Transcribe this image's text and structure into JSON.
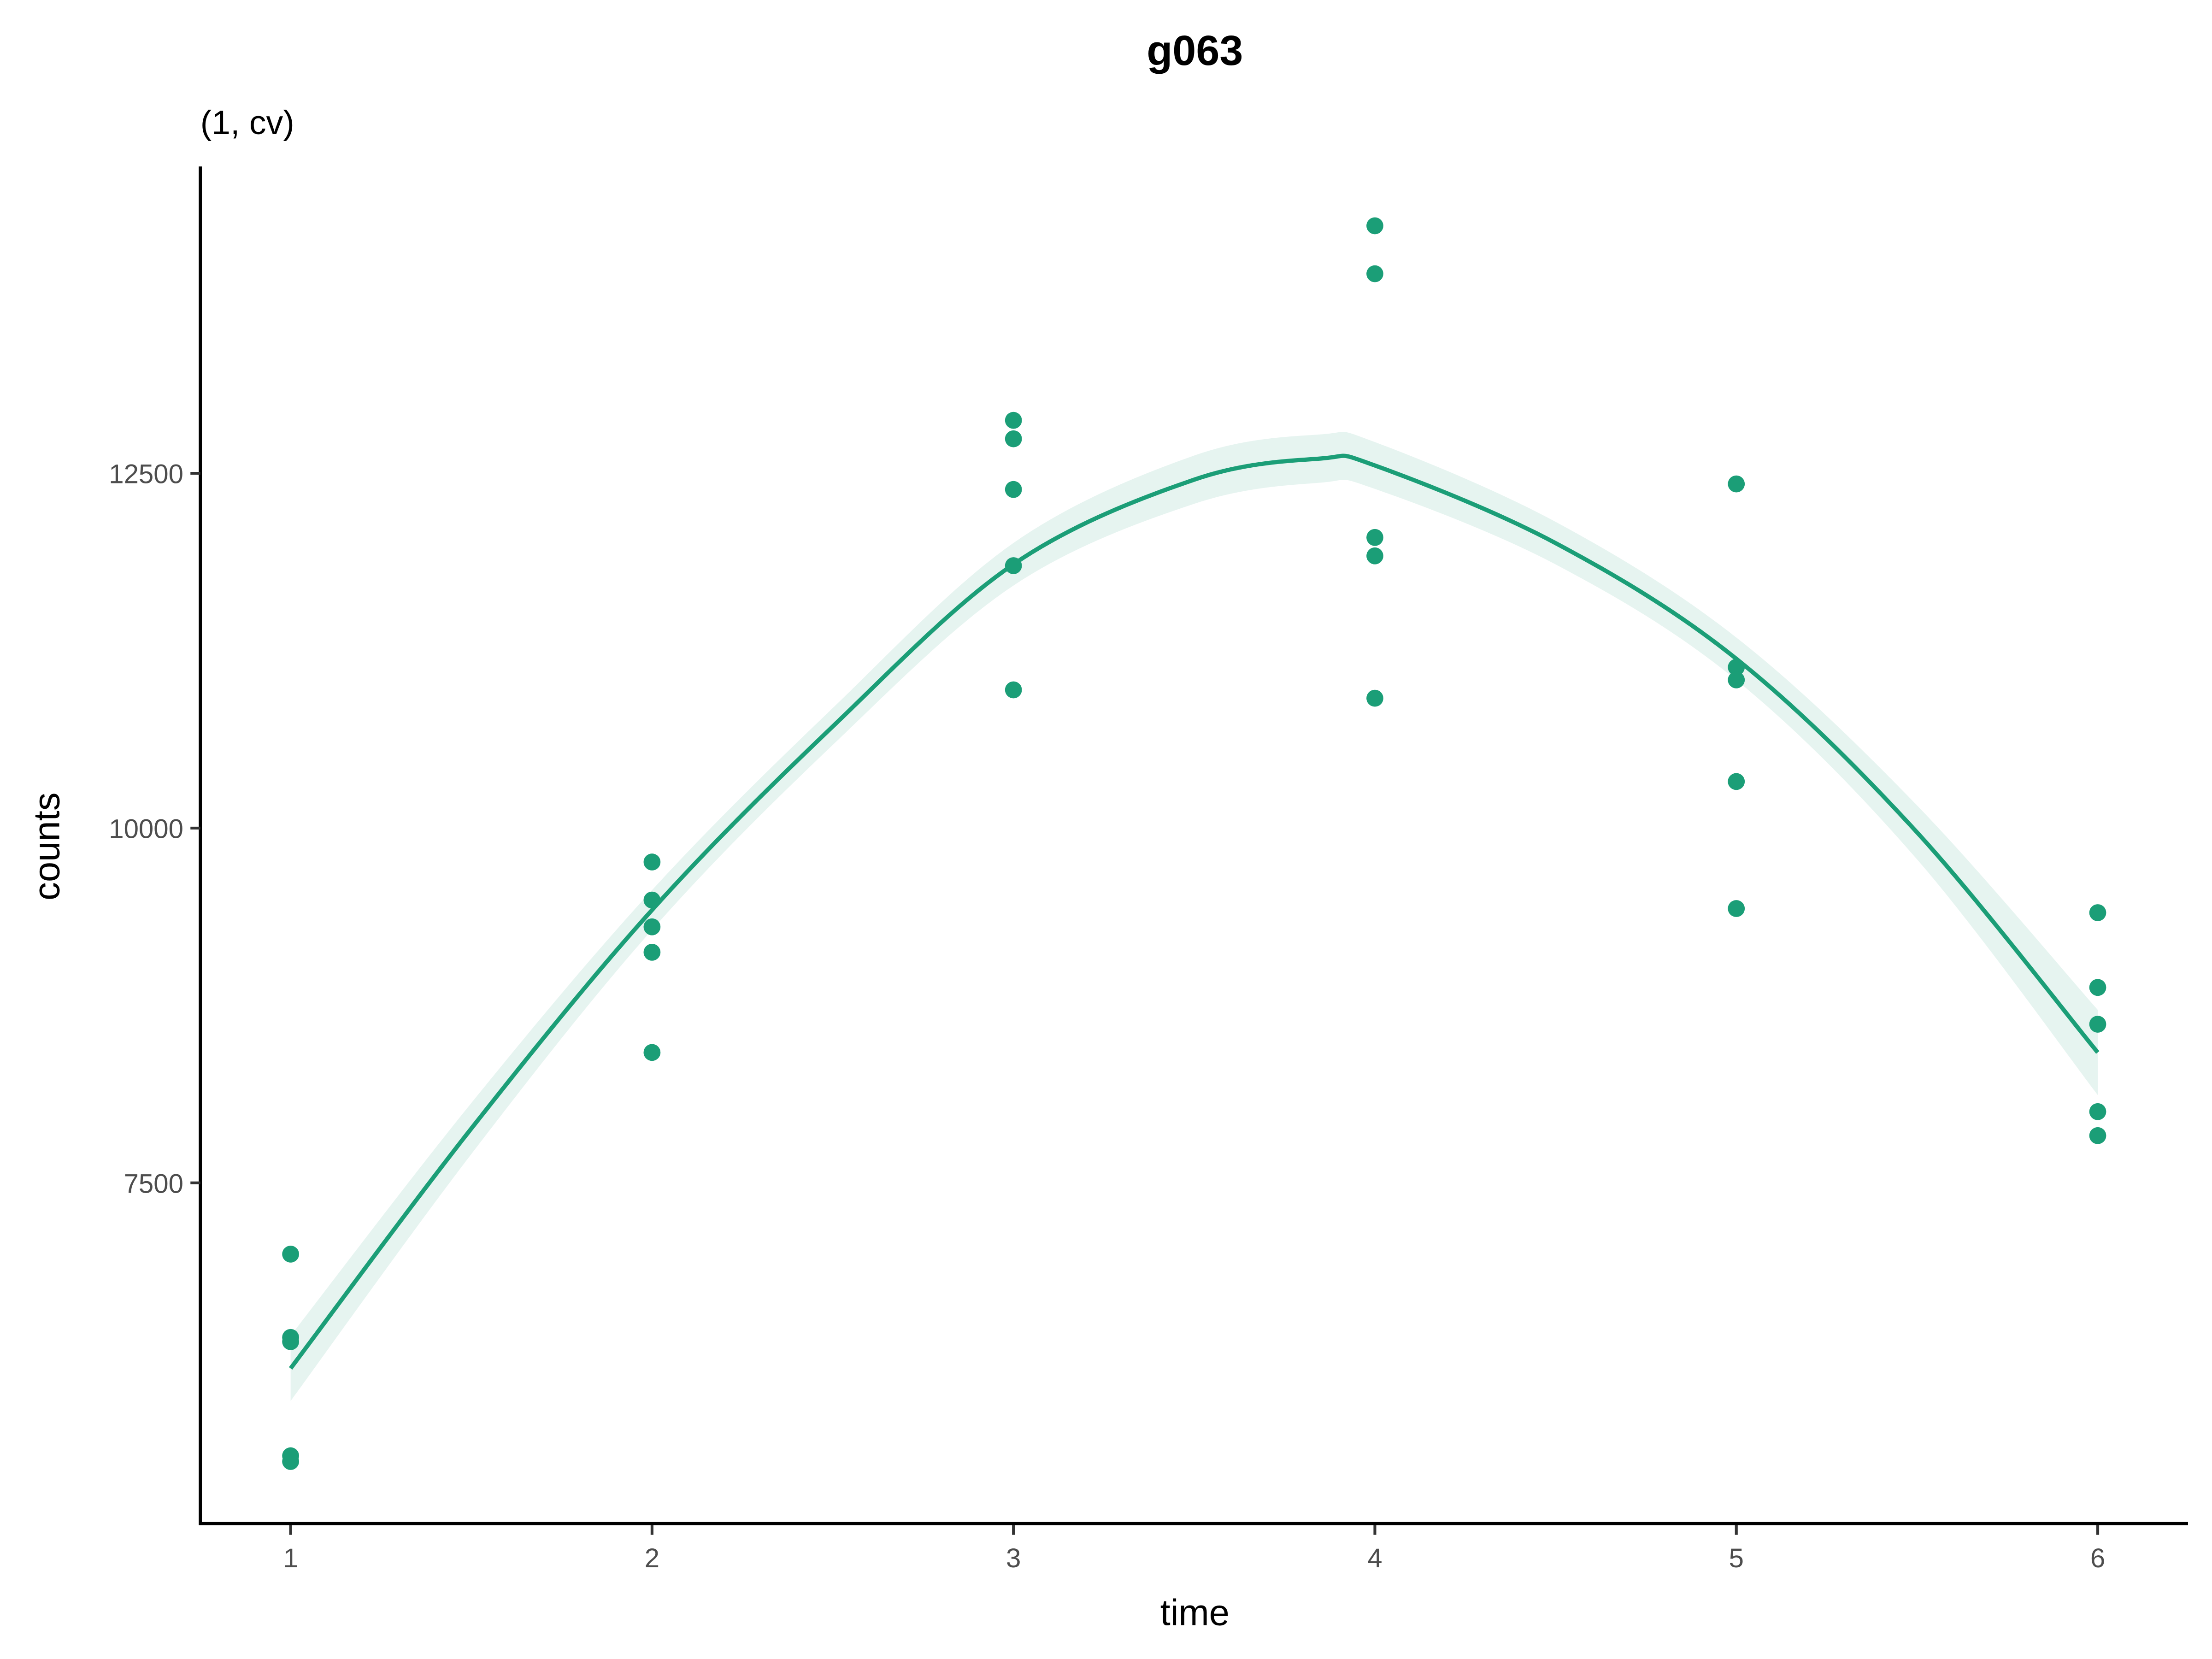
{
  "chart_data": {
    "type": "scatter",
    "title": "g063",
    "subtitle": "(1, cv)",
    "xlabel": "time",
    "ylabel": "counts",
    "xlim": [
      0.75,
      6.25
    ],
    "ylim": [
      5100,
      14660
    ],
    "xticks": [
      1,
      2,
      3,
      4,
      5,
      6
    ],
    "yticks": [
      7500,
      10000,
      12500
    ],
    "grid": false,
    "color": "#1B9E77",
    "points": [
      {
        "x": 1,
        "y": 6998
      },
      {
        "x": 1,
        "y": 6411
      },
      {
        "x": 1,
        "y": 6381
      },
      {
        "x": 1,
        "y": 5577
      },
      {
        "x": 1,
        "y": 5537
      },
      {
        "x": 2,
        "y": 9761
      },
      {
        "x": 2,
        "y": 9493
      },
      {
        "x": 2,
        "y": 9304
      },
      {
        "x": 2,
        "y": 9125
      },
      {
        "x": 2,
        "y": 8419
      },
      {
        "x": 3,
        "y": 12873
      },
      {
        "x": 3,
        "y": 12743
      },
      {
        "x": 3,
        "y": 12386
      },
      {
        "x": 3,
        "y": 11849
      },
      {
        "x": 3,
        "y": 10974
      },
      {
        "x": 4,
        "y": 14244
      },
      {
        "x": 4,
        "y": 13906
      },
      {
        "x": 4,
        "y": 12048
      },
      {
        "x": 4,
        "y": 11918
      },
      {
        "x": 4,
        "y": 10915
      },
      {
        "x": 5,
        "y": 12425
      },
      {
        "x": 5,
        "y": 11133
      },
      {
        "x": 5,
        "y": 11044
      },
      {
        "x": 5,
        "y": 10328
      },
      {
        "x": 5,
        "y": 9433
      },
      {
        "x": 6,
        "y": 9404
      },
      {
        "x": 6,
        "y": 8877
      },
      {
        "x": 6,
        "y": 8618
      },
      {
        "x": 6,
        "y": 8002
      },
      {
        "x": 6,
        "y": 7833
      }
    ],
    "fit": {
      "x": [
        1,
        1.5,
        2,
        2.5,
        3,
        3.5,
        3.85,
        4,
        4.5,
        5,
        5.5,
        6
      ],
      "y": [
        6193,
        7883,
        9423,
        10716,
        11859,
        12455,
        12604,
        12555,
        12008,
        11193,
        9970,
        8419
      ],
      "se": [
        230,
        180,
        140,
        130,
        150,
        170,
        170,
        165,
        150,
        150,
        190,
        300
      ]
    }
  }
}
